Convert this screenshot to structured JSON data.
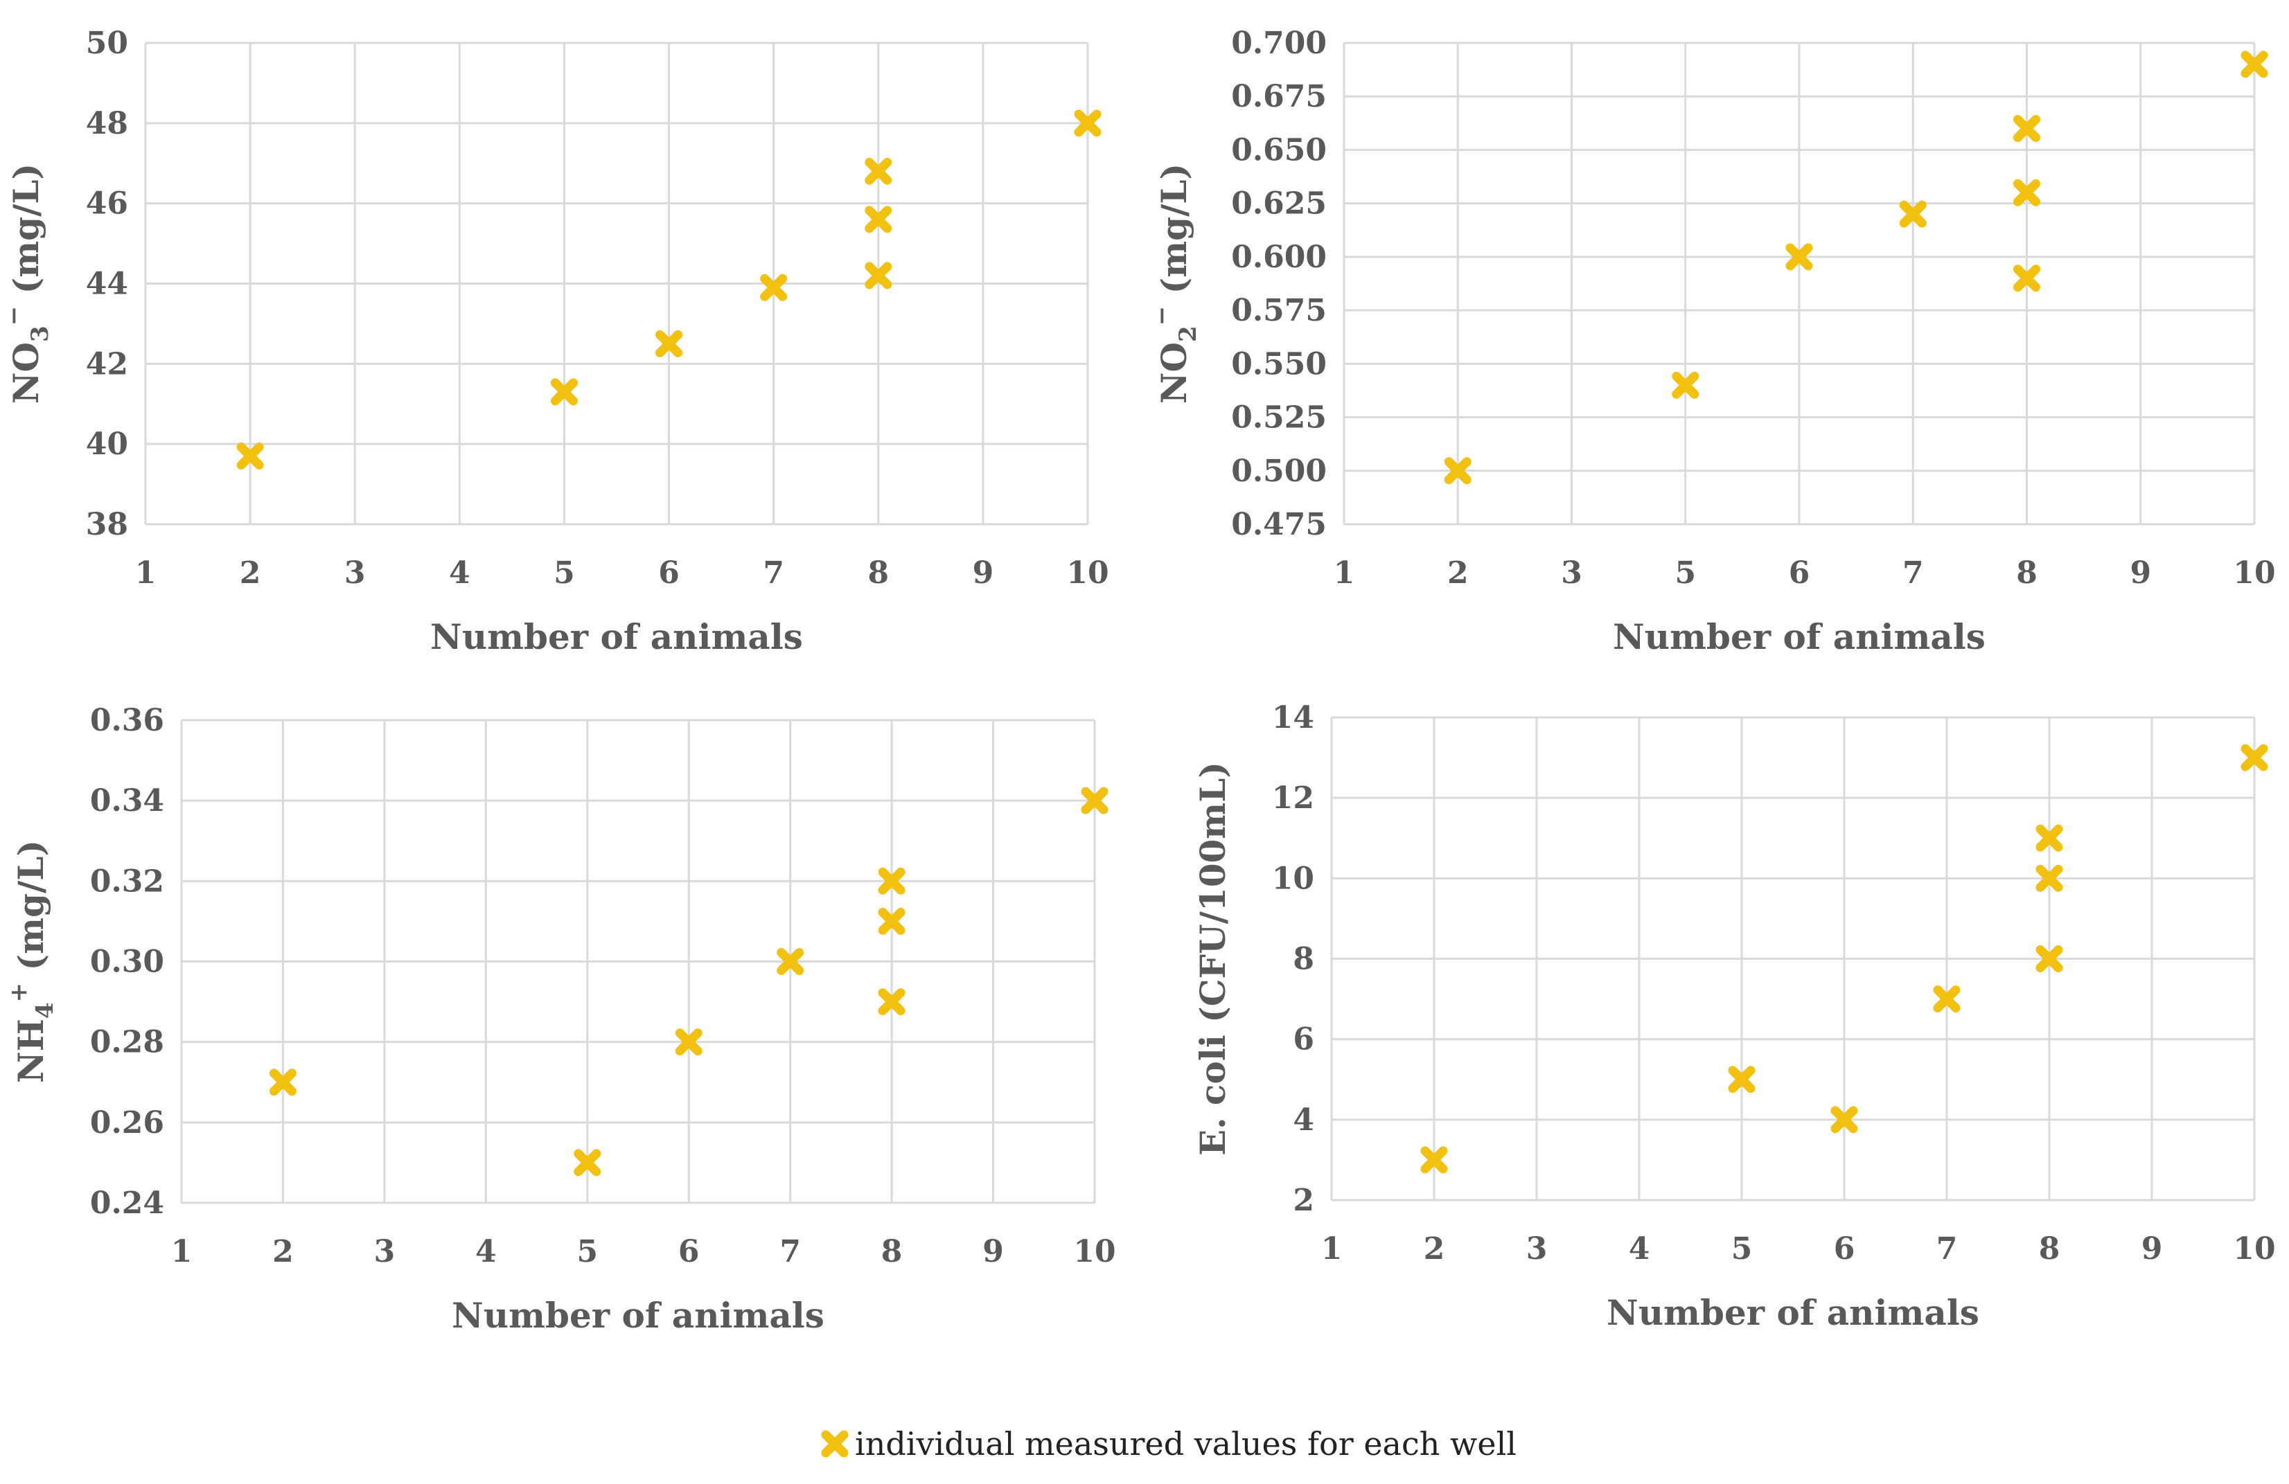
{
  "colors": {
    "marker": "#f2c00f",
    "grid": "#d9d9d9",
    "text": "#595959"
  },
  "legend": {
    "label": "individual measured values for each well",
    "icon": "x-marker-icon"
  },
  "chart_data": [
    {
      "type": "scatter",
      "xlabel": "Number of animals",
      "ylabel": {
        "base": "NO",
        "sub": "3",
        "sup": "−",
        "unit": " (mg/L)"
      },
      "xticks": [
        "1",
        "2",
        "3",
        "4",
        "5",
        "6",
        "7",
        "8",
        "9",
        "10"
      ],
      "yticks": [
        "38",
        "40",
        "42",
        "44",
        "46",
        "48",
        "50"
      ],
      "ylim": [
        38,
        50
      ],
      "grid": true,
      "points": [
        {
          "x": 2,
          "y": 39.7
        },
        {
          "x": 5,
          "y": 41.3
        },
        {
          "x": 6,
          "y": 42.5
        },
        {
          "x": 7,
          "y": 43.9
        },
        {
          "x": 8,
          "y": 44.2
        },
        {
          "x": 8,
          "y": 45.6
        },
        {
          "x": 8,
          "y": 46.8
        },
        {
          "x": 10,
          "y": 48.0
        }
      ]
    },
    {
      "type": "scatter",
      "xlabel": "Number of animals",
      "ylabel": {
        "base": "NO",
        "sub": "2",
        "sup": "−",
        "unit": " (mg/L)"
      },
      "xticks": [
        "1",
        "2",
        "3",
        "5",
        "6",
        "7",
        "8",
        "9",
        "10"
      ],
      "yticks": [
        "0.475",
        "0.500",
        "0.525",
        "0.550",
        "0.575",
        "0.600",
        "0.625",
        "0.650",
        "0.675",
        "0.700"
      ],
      "ylim": [
        0.475,
        0.7
      ],
      "grid": true,
      "points": [
        {
          "x": 2,
          "y": 0.5
        },
        {
          "x": 5,
          "y": 0.54
        },
        {
          "x": 6,
          "y": 0.6
        },
        {
          "x": 7,
          "y": 0.62
        },
        {
          "x": 8,
          "y": 0.59
        },
        {
          "x": 8,
          "y": 0.63
        },
        {
          "x": 8,
          "y": 0.66
        },
        {
          "x": 10,
          "y": 0.69
        }
      ]
    },
    {
      "type": "scatter",
      "xlabel": "Number of animals",
      "ylabel": {
        "base": "NH",
        "sub": "4",
        "sup": "+",
        "unit": " (mg/L)"
      },
      "xticks": [
        "1",
        "2",
        "3",
        "4",
        "5",
        "6",
        "7",
        "8",
        "9",
        "10"
      ],
      "yticks": [
        "0.24",
        "0.26",
        "0.28",
        "0.30",
        "0.32",
        "0.34",
        "0.36"
      ],
      "ylim": [
        0.24,
        0.36
      ],
      "grid": true,
      "points": [
        {
          "x": 2,
          "y": 0.27
        },
        {
          "x": 5,
          "y": 0.25
        },
        {
          "x": 6,
          "y": 0.28
        },
        {
          "x": 7,
          "y": 0.3
        },
        {
          "x": 8,
          "y": 0.29
        },
        {
          "x": 8,
          "y": 0.31
        },
        {
          "x": 8,
          "y": 0.32
        },
        {
          "x": 10,
          "y": 0.34
        }
      ]
    },
    {
      "type": "scatter",
      "xlabel": "Number of animals",
      "ylabel": {
        "base": "E. coli (CFU/100mL)",
        "sub": "",
        "sup": "",
        "unit": ""
      },
      "xticks": [
        "1",
        "2",
        "3",
        "4",
        "5",
        "6",
        "7",
        "8",
        "9",
        "10"
      ],
      "yticks": [
        "2",
        "4",
        "6",
        "8",
        "10",
        "12",
        "14"
      ],
      "ylim": [
        2,
        14
      ],
      "grid": true,
      "points": [
        {
          "x": 2,
          "y": 3
        },
        {
          "x": 5,
          "y": 5
        },
        {
          "x": 6,
          "y": 4
        },
        {
          "x": 7,
          "y": 7
        },
        {
          "x": 8,
          "y": 8
        },
        {
          "x": 8,
          "y": 10
        },
        {
          "x": 8,
          "y": 11
        },
        {
          "x": 10,
          "y": 13
        }
      ]
    }
  ]
}
